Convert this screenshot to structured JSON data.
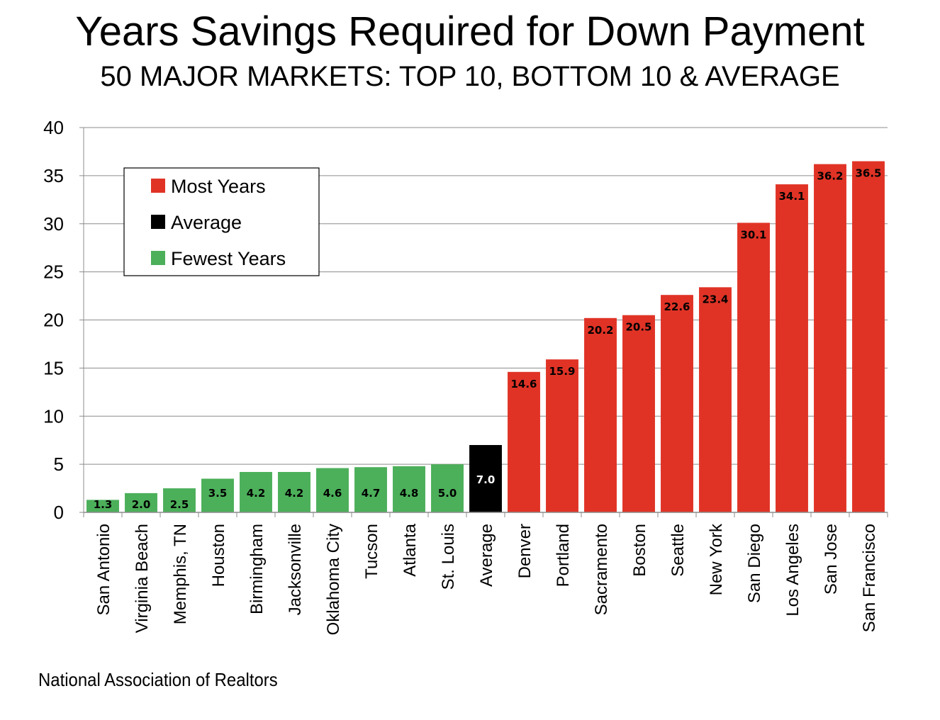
{
  "title": "Years Savings Required for Down Payment",
  "subtitle": "50 MAJOR MARKETS: TOP 10, BOTTOM 10 & AVERAGE",
  "source": "National Association of Realtors",
  "colors": {
    "fewest": "#4caf5a",
    "average": "#000000",
    "most": "#e03326"
  },
  "legend": [
    {
      "label": "Most Years",
      "group": "most"
    },
    {
      "label": "Average",
      "group": "average"
    },
    {
      "label": "Fewest Years",
      "group": "fewest"
    }
  ],
  "chart_data": {
    "type": "bar",
    "title": "Years Savings Required for Down Payment",
    "subtitle": "50 MAJOR MARKETS: TOP 10, BOTTOM 10 & AVERAGE",
    "xlabel": "",
    "ylabel": "",
    "ylim": [
      0,
      40
    ],
    "yticks": [
      0,
      5,
      10,
      15,
      20,
      25,
      30,
      35,
      40
    ],
    "grid": true,
    "legend_position": "top-left",
    "categories": [
      "San Antonio",
      "Virginia Beach",
      "Memphis, TN",
      "Houston",
      "Birmingham",
      "Jacksonville",
      "Oklahoma City",
      "Tucson",
      "Atlanta",
      "St. Louis",
      "Average",
      "Denver",
      "Portland",
      "Sacramento",
      "Boston",
      "Seattle",
      "New York",
      "San Diego",
      "Los Angeles",
      "San Jose",
      "San Francisco"
    ],
    "values": [
      1.3,
      2.0,
      2.5,
      3.5,
      4.2,
      4.2,
      4.6,
      4.7,
      4.8,
      5.0,
      7.0,
      14.6,
      15.9,
      20.2,
      20.5,
      22.6,
      23.4,
      30.1,
      34.1,
      36.2,
      36.5
    ],
    "labels": [
      "1.3",
      "2.0",
      "2.5",
      "3.5",
      "4.2",
      "4.2",
      "4.6",
      "4.7",
      "4.8",
      "5.0",
      "7.0",
      "14.6",
      "15.9",
      "20.2",
      "20.5",
      "22.6",
      "23.4",
      "30.1",
      "34.1",
      "36.2",
      "36.5"
    ],
    "groups": [
      "fewest",
      "fewest",
      "fewest",
      "fewest",
      "fewest",
      "fewest",
      "fewest",
      "fewest",
      "fewest",
      "fewest",
      "average",
      "most",
      "most",
      "most",
      "most",
      "most",
      "most",
      "most",
      "most",
      "most",
      "most"
    ]
  }
}
